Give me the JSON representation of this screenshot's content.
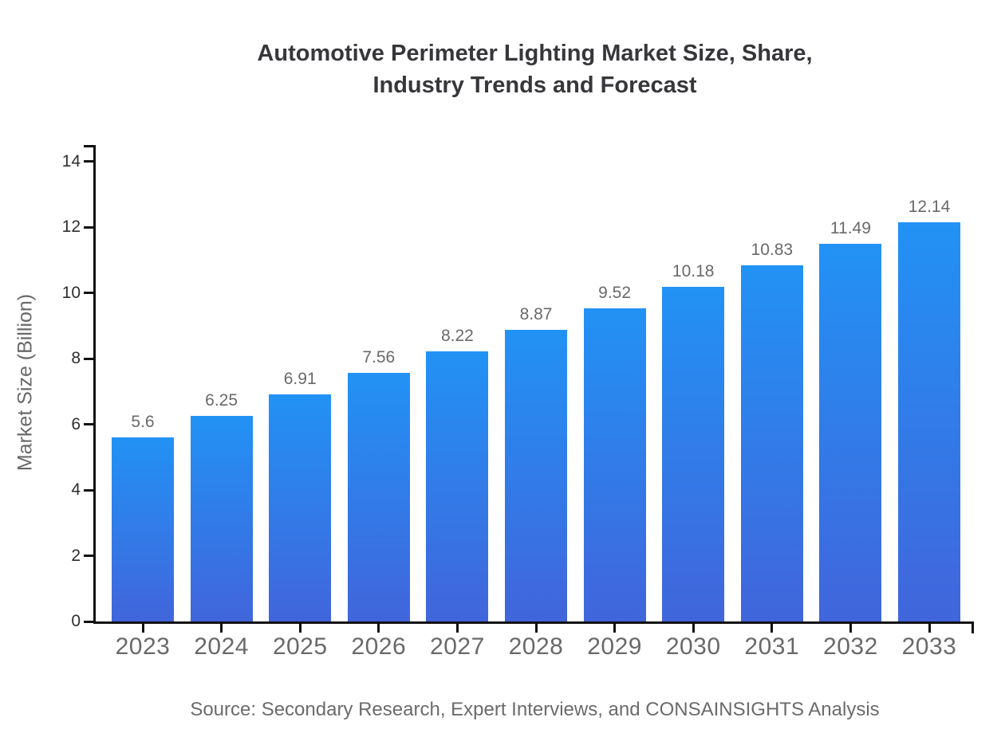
{
  "title_lines": [
    "Automotive Perimeter Lighting Market Size, Share,",
    "Industry Trends and Forecast"
  ],
  "source_note": "Source: Secondary Research, Expert Interviews, and CONSAINSIGHTS Analysis",
  "chart_data": {
    "type": "bar",
    "title": "Automotive Perimeter Lighting Market Size, Share, Industry Trends and Forecast",
    "xlabel": "",
    "ylabel": "Market Size (Billion)",
    "categories": [
      "2023",
      "2024",
      "2025",
      "2026",
      "2027",
      "2028",
      "2029",
      "2030",
      "2031",
      "2032",
      "2033"
    ],
    "values": [
      5.6,
      6.25,
      6.91,
      7.56,
      8.22,
      8.87,
      9.52,
      10.18,
      10.83,
      11.49,
      12.14
    ],
    "value_labels": [
      "5.6",
      "6.25",
      "6.91",
      "7.56",
      "8.22",
      "8.87",
      "9.52",
      "10.18",
      "10.83",
      "11.49",
      "12.14"
    ],
    "yticks": [
      0,
      2,
      4,
      6,
      8,
      10,
      12,
      14
    ],
    "ylim": [
      0,
      14.5
    ],
    "grid": false,
    "legend": "none",
    "bar_style": "vertical gradient, light blue top to royal blue bottom",
    "colors": {
      "bar_top": "#2292F5",
      "bar_bottom": "#4165DB",
      "axis": "#111111",
      "tick_label": "#2F2F2F",
      "category_label": "#696969",
      "value_label": "#696969",
      "title": "#37373B",
      "source": "#6B6B6B"
    }
  }
}
